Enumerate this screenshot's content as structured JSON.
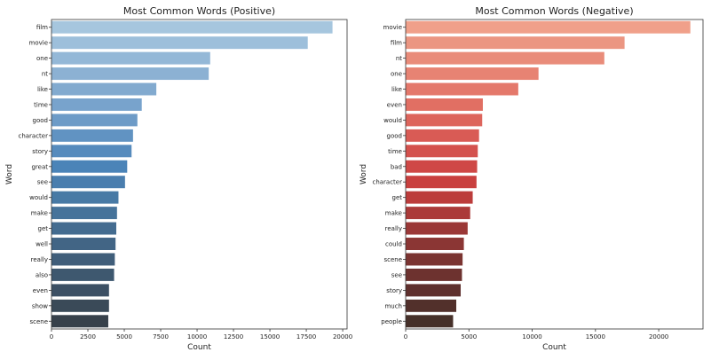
{
  "chart_data": [
    {
      "type": "bar",
      "orientation": "horizontal",
      "title": "Most Common Words (Positive)",
      "xlabel": "Count",
      "ylabel": "Word",
      "xlim": [
        0,
        20300
      ],
      "xticks": [
        0,
        2500,
        5000,
        7500,
        10000,
        12500,
        15000,
        17500,
        20000
      ],
      "categories": [
        "film",
        "movie",
        "one",
        "nt",
        "like",
        "time",
        "good",
        "character",
        "story",
        "great",
        "see",
        "would",
        "make",
        "get",
        "well",
        "really",
        "also",
        "even",
        "show",
        "scene"
      ],
      "values": [
        19300,
        17600,
        10900,
        10800,
        7200,
        6200,
        5900,
        5600,
        5500,
        5200,
        5050,
        4600,
        4500,
        4450,
        4400,
        4350,
        4300,
        3950,
        3950,
        3900
      ],
      "palette": "blues_dark",
      "colors": [
        "#a6c6de",
        "#9dbfdb",
        "#94b8d7",
        "#8cb1d3",
        "#82aacf",
        "#78a3cc",
        "#6d9bc7",
        "#6193c2",
        "#568bbd",
        "#4b84b8",
        "#4a7eae",
        "#487aa5",
        "#46739a",
        "#446c90",
        "#426585",
        "#405e7a",
        "#3e586f",
        "#3c5064",
        "#3a4a58",
        "#37414b"
      ]
    },
    {
      "type": "bar",
      "orientation": "horizontal",
      "title": "Most Common Words (Negative)",
      "xlabel": "Count",
      "ylabel": "Word",
      "xlim": [
        0,
        23500
      ],
      "xticks": [
        0,
        5000,
        10000,
        15000,
        20000
      ],
      "categories": [
        "movie",
        "film",
        "nt",
        "one",
        "like",
        "even",
        "would",
        "good",
        "time",
        "bad",
        "character",
        "get",
        "make",
        "really",
        "could",
        "scene",
        "see",
        "story",
        "much",
        "people"
      ],
      "values": [
        22500,
        17300,
        15700,
        10500,
        8900,
        6100,
        6050,
        5800,
        5700,
        5650,
        5600,
        5300,
        5100,
        4900,
        4600,
        4500,
        4450,
        4350,
        4000,
        3750
      ],
      "palette": "reds_dark",
      "colors": [
        "#f0a08a",
        "#eb9682",
        "#e98c7a",
        "#e78373",
        "#e4786b",
        "#e16f63",
        "#dd655c",
        "#d95b55",
        "#d4514d",
        "#cf4846",
        "#c9403f",
        "#bc3c3b",
        "#ab3a39",
        "#9b3837",
        "#8b3634",
        "#7b3431",
        "#6d322f",
        "#5f302d",
        "#52302b",
        "#463029"
      ]
    }
  ]
}
